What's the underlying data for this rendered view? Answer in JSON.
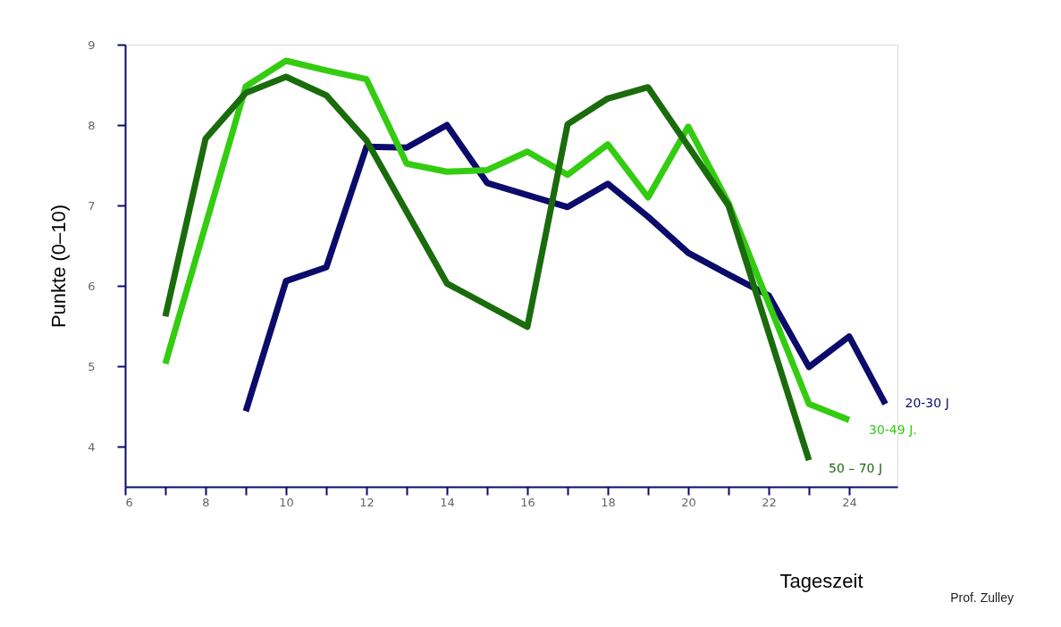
{
  "chart_data": {
    "type": "line",
    "xlabel": "Tageszeit",
    "ylabel": "Punkte (0–10)",
    "xlim": [
      6,
      25.2
    ],
    "ylim": [
      3.5,
      9
    ],
    "xticks": [
      6,
      {
        "value": 7,
        "label": null
      },
      8,
      {
        "value": 9,
        "label": null
      },
      10,
      {
        "value": 11,
        "label": null
      },
      12,
      {
        "value": 13,
        "label": null
      },
      14,
      {
        "value": 15,
        "label": null
      },
      16,
      {
        "value": 17,
        "label": null
      },
      18,
      {
        "value": 19,
        "label": null
      },
      20,
      {
        "value": 21,
        "label": null
      },
      22,
      {
        "value": 23,
        "label": null
      },
      24
    ],
    "yticks": [
      4,
      5,
      6,
      7,
      8,
      9
    ],
    "grid": false,
    "legend": false,
    "marker": "none",
    "line_style": "solid",
    "series": [
      {
        "name": "20-30 J",
        "color": "#0b0b6b",
        "x": [
          9,
          10,
          11,
          12,
          13,
          14,
          15,
          16,
          17,
          18,
          19,
          20,
          21,
          22,
          23,
          24,
          24.9
        ],
        "values": [
          4.44,
          6.06,
          6.23,
          7.73,
          7.72,
          8.0,
          7.28,
          7.13,
          6.98,
          7.27,
          6.86,
          6.41,
          6.14,
          5.88,
          4.99,
          5.37,
          4.53
        ]
      },
      {
        "name": "30-49 J.",
        "color": "#33cc11",
        "x": [
          7,
          9,
          10,
          11,
          12,
          13,
          14,
          15,
          16,
          17,
          18,
          19,
          20,
          21,
          23,
          24
        ],
        "values": [
          5.03,
          8.48,
          8.8,
          8.68,
          8.57,
          7.52,
          7.42,
          7.44,
          7.67,
          7.38,
          7.76,
          7.1,
          7.98,
          7.03,
          4.53,
          4.33
        ]
      },
      {
        "name": "50 – 70 J",
        "color": "#1a6b0c",
        "x": [
          7,
          8,
          9,
          10,
          11,
          12,
          14,
          16,
          17,
          18,
          19,
          21,
          23
        ],
        "values": [
          5.62,
          7.83,
          8.4,
          8.6,
          8.37,
          7.81,
          6.03,
          5.49,
          8.01,
          8.33,
          8.47,
          7.0,
          3.83
        ]
      }
    ],
    "annotations": [
      "Prof. Zulley"
    ]
  }
}
